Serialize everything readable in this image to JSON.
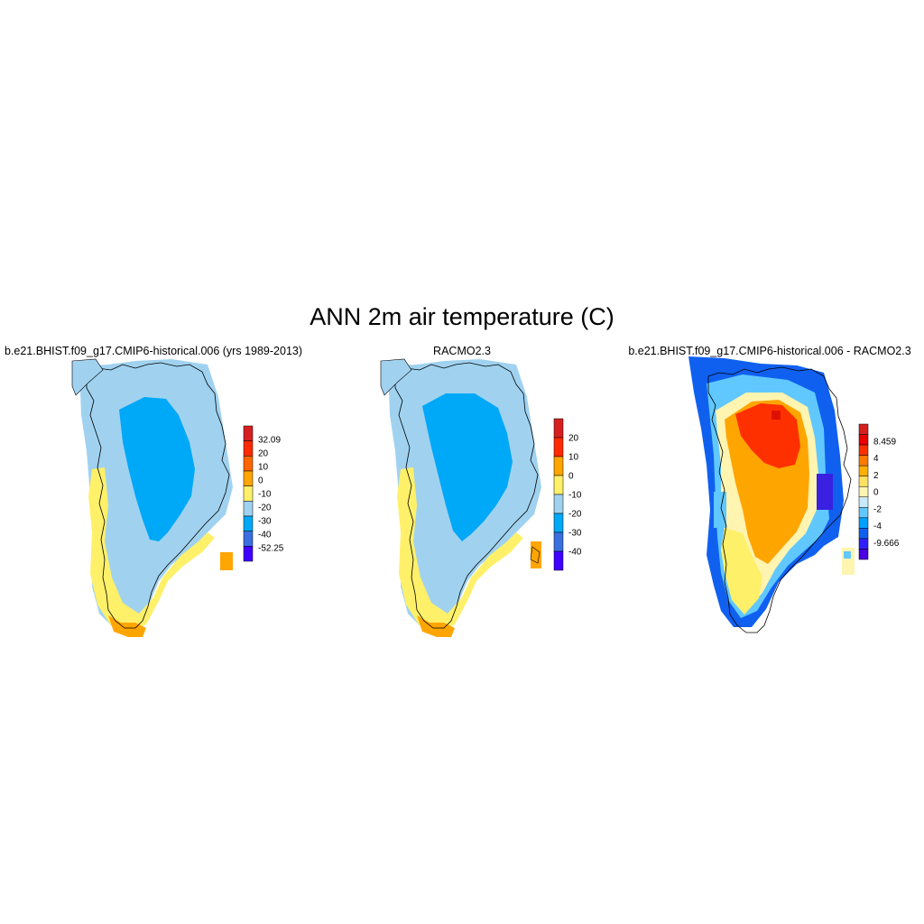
{
  "figure": {
    "title": "ANN 2m air temperature (C)"
  },
  "panels": [
    {
      "id": "model",
      "title": "b.e21.BHIST.f09_g17.CMIP6-historical.006 (yrs 1989-2013)",
      "colorbar": {
        "labels": [
          "32.09",
          "20",
          "10",
          "0",
          "-10",
          "-20",
          "-30",
          "-40",
          "-52.25"
        ],
        "colors": [
          "#d62020",
          "#ff2a00",
          "#ff6600",
          "#ffa500",
          "#fff06a",
          "#a0d2f0",
          "#00a8f8",
          "#3a6fe0",
          "#3f00ff"
        ]
      }
    },
    {
      "id": "obs",
      "title": "RACMO2.3",
      "colorbar": {
        "labels": [
          "20",
          "10",
          "0",
          "-10",
          "-20",
          "-30",
          "-40"
        ],
        "colors": [
          "#d62020",
          "#ff2a00",
          "#ffa500",
          "#fff06a",
          "#a0d2f0",
          "#00a8f8",
          "#3a6fe0",
          "#3f00ff"
        ]
      }
    },
    {
      "id": "diff",
      "title": "b.e21.BHIST.f09_g17.CMIP6-historical.006 - RACMO2.3",
      "colorbar": {
        "labels": [
          "8.459",
          "4",
          "2",
          "0",
          "-2",
          "-4",
          "-9.666"
        ],
        "colors": [
          "#d62020",
          "#e80000",
          "#ff3000",
          "#ff7a00",
          "#ffb000",
          "#ffe060",
          "#fff4b0",
          "#c8eaff",
          "#60c8ff",
          "#00a0ff",
          "#1060f0",
          "#3020ff",
          "#4a00e0"
        ]
      }
    }
  ],
  "fills": {
    "very_cold": "#00a8f8",
    "cold": "#a0d2f0",
    "cool": "#fff06a",
    "mild": "#ffa500",
    "warm": "#ff3000",
    "hot": "#e01000",
    "neg_small": "#60c8ff",
    "neg_mid": "#1060f0",
    "neg_large": "#3a20e0",
    "pale": "#fff4b0"
  }
}
